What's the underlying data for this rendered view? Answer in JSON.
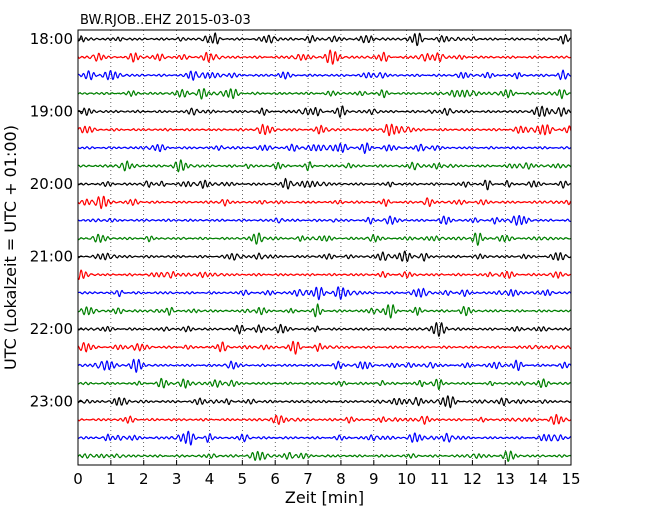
{
  "chart_data": {
    "type": "line",
    "title": "BW.RJOB..EHZ 2015-03-03",
    "xlabel": "Zeit  [min]",
    "ylabel": "UTC (Lokalzeit = UTC + 01:00)",
    "xlim": [
      0,
      15
    ],
    "x_ticks": [
      "0",
      "1",
      "2",
      "3",
      "4",
      "5",
      "6",
      "7",
      "8",
      "9",
      "10",
      "11",
      "12",
      "13",
      "14",
      "15"
    ],
    "y_ticks": [
      "18:00",
      "19:00",
      "20:00",
      "21:00",
      "22:00",
      "23:00"
    ],
    "y_tick_rows": [
      0,
      4,
      8,
      12,
      16,
      20
    ],
    "row_count": 24,
    "row_start_times": [
      "18:00",
      "18:15",
      "18:30",
      "18:45",
      "19:00",
      "19:15",
      "19:30",
      "19:45",
      "20:00",
      "20:15",
      "20:30",
      "20:45",
      "21:00",
      "21:15",
      "21:30",
      "21:45",
      "22:00",
      "22:15",
      "22:30",
      "22:45",
      "23:00",
      "23:15",
      "23:30",
      "23:45"
    ],
    "series_colors": [
      "#000000",
      "#ff0000",
      "#0000ff",
      "#008000"
    ],
    "grid": "vertical dotted",
    "legend": "none"
  }
}
